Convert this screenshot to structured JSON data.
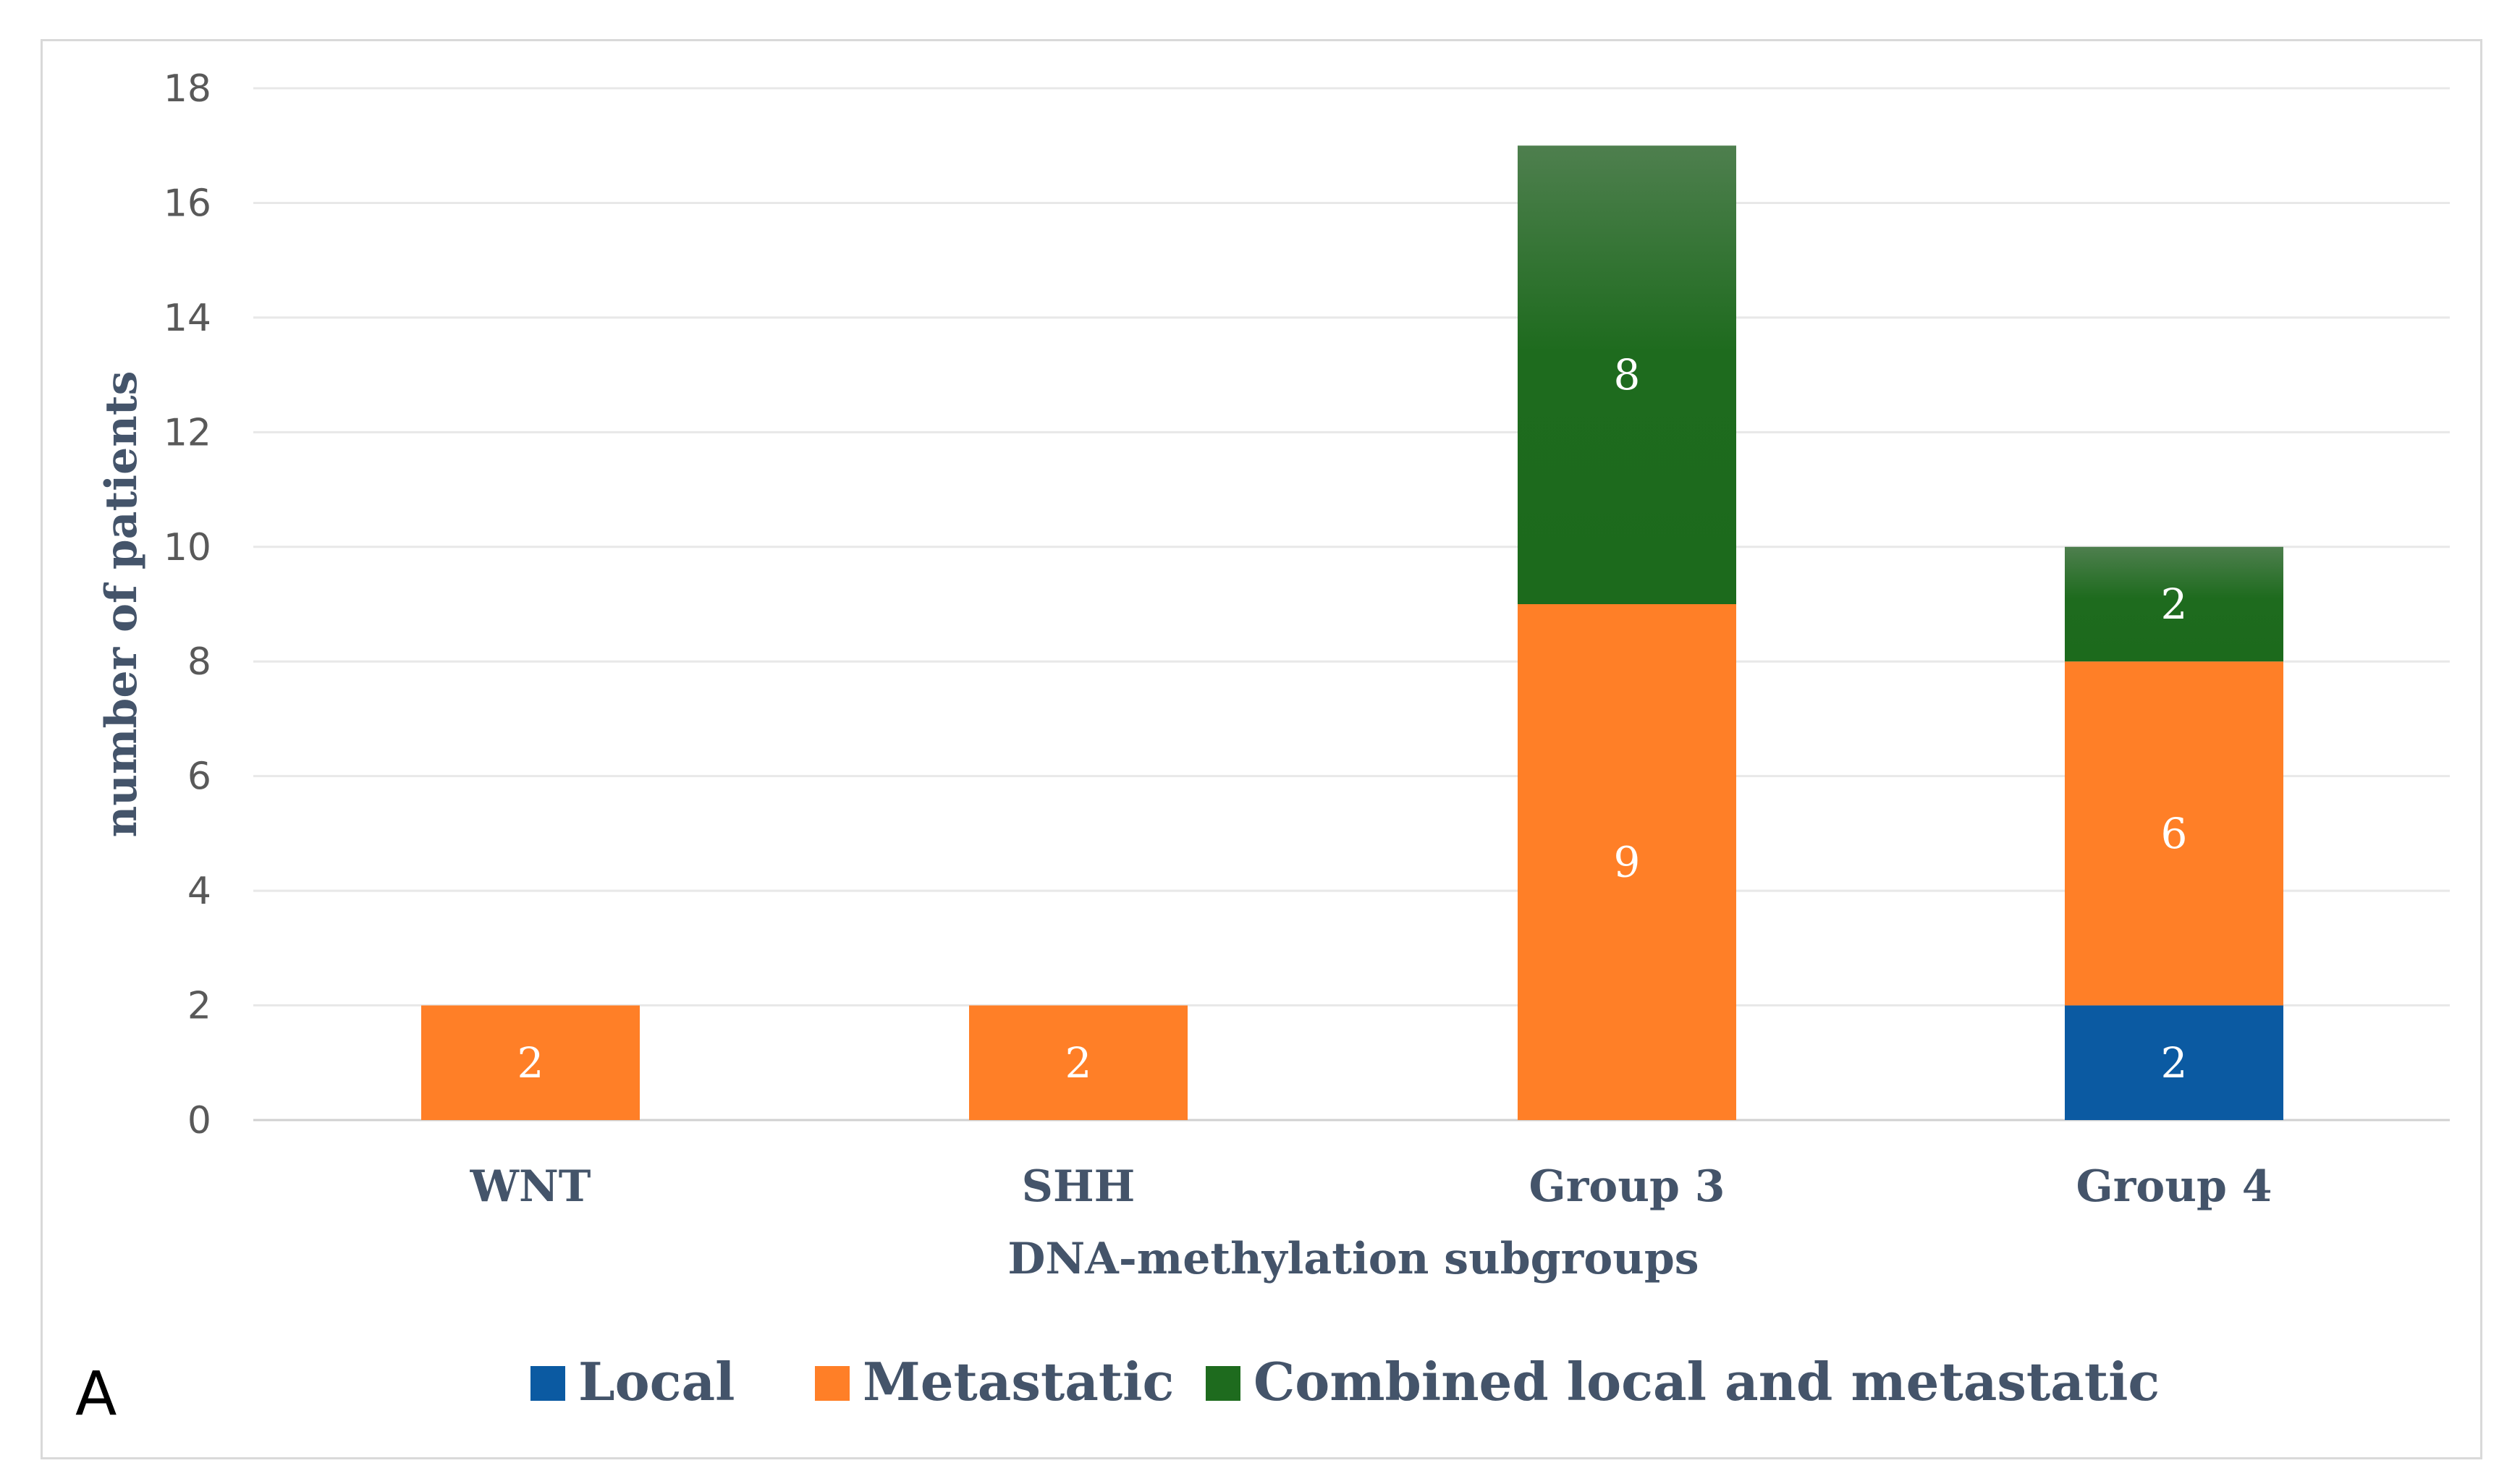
{
  "panel_label": "A",
  "colors": {
    "local": "#0b5aa2",
    "metastatic": "#ff7f27",
    "combined": "#1e6b1e",
    "combined_top": "#4a7f4a",
    "grid": "#e8e8e8"
  },
  "chart_data": {
    "type": "bar",
    "stacked": true,
    "title": "",
    "xlabel": "DNA-methylation subgroups",
    "ylabel": "number of patients",
    "ylim": [
      0,
      18
    ],
    "yticks": [
      0,
      2,
      4,
      6,
      8,
      10,
      12,
      14,
      16,
      18
    ],
    "grid": true,
    "legend_position": "bottom",
    "categories": [
      "WNT",
      "SHH",
      "Group 3",
      "Group 4"
    ],
    "series": [
      {
        "name": "Local",
        "key": "local",
        "values": [
          0,
          0,
          0,
          2
        ]
      },
      {
        "name": "Metastatic",
        "key": "metastatic",
        "values": [
          2,
          2,
          9,
          6
        ]
      },
      {
        "name": "Combined local and metastatic",
        "key": "combined",
        "values": [
          0,
          0,
          8,
          2
        ]
      }
    ]
  }
}
